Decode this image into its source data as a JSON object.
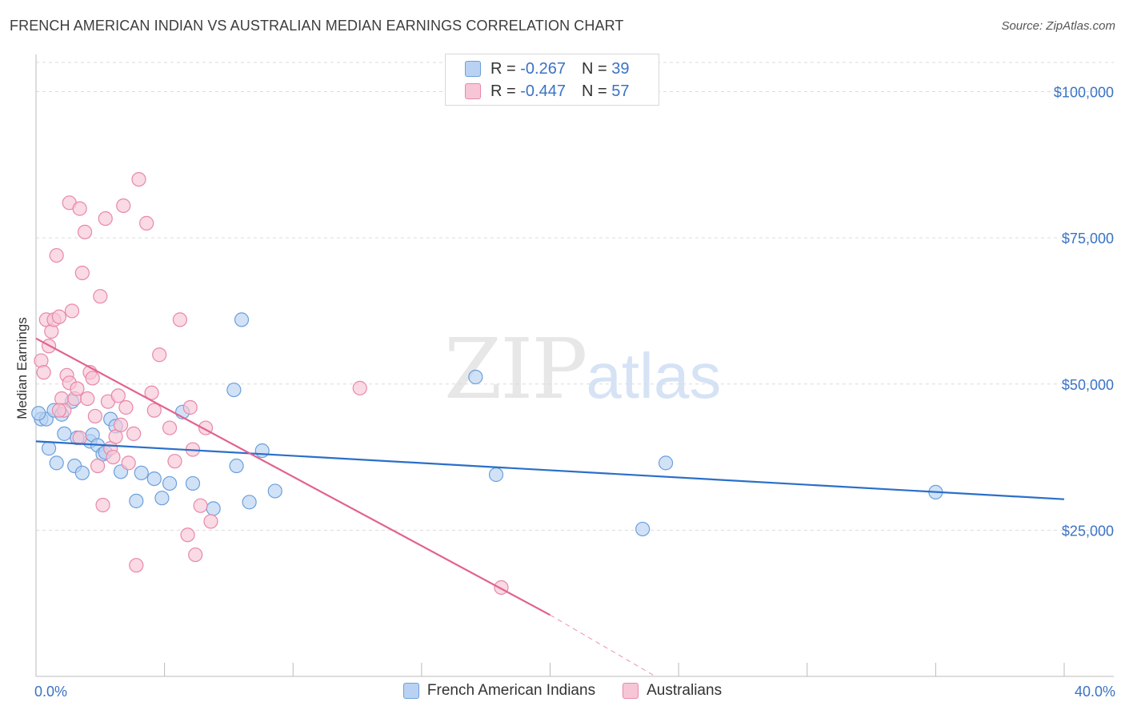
{
  "title": "FRENCH AMERICAN INDIAN VS AUSTRALIAN MEDIAN EARNINGS CORRELATION CHART",
  "source": "Source: ZipAtlas.com",
  "watermark": {
    "zip": "ZIP",
    "atlas": "atlas"
  },
  "stats": [
    {
      "r_label": "R =",
      "r_value": "-0.267",
      "n_label": "N =",
      "n_value": "39"
    },
    {
      "r_label": "R =",
      "r_value": "-0.447",
      "n_label": "N =",
      "n_value": "57"
    }
  ],
  "chart_data": {
    "type": "scatter",
    "title": "FRENCH AMERICAN INDIAN VS AUSTRALIAN MEDIAN EARNINGS CORRELATION CHART",
    "xlabel": "",
    "ylabel": "Median Earnings",
    "xlim": [
      0,
      40
    ],
    "ylim": [
      0,
      105000
    ],
    "x_tick_labels": [
      "0.0%",
      "40.0%"
    ],
    "y_ticks": [
      25000,
      50000,
      75000,
      100000
    ],
    "y_tick_labels": [
      "$25,000",
      "$50,000",
      "$75,000",
      "$100,000"
    ],
    "grid": true,
    "legend_position": "bottom",
    "series": [
      {
        "name": "French American Indians",
        "color": "#6b9fdc",
        "fill": "#b9d2f3",
        "line_color": "#2b6fc9",
        "trend": {
          "x0": 0,
          "y0": 40200,
          "x1": 40,
          "y1": 30300
        },
        "points": [
          [
            0.2,
            44000
          ],
          [
            0.4,
            44000
          ],
          [
            0.5,
            39000
          ],
          [
            0.7,
            45500
          ],
          [
            0.8,
            36500
          ],
          [
            1.0,
            44800
          ],
          [
            1.1,
            41500
          ],
          [
            1.4,
            47000
          ],
          [
            1.5,
            36000
          ],
          [
            1.6,
            40800
          ],
          [
            1.8,
            34800
          ],
          [
            2.1,
            40200
          ],
          [
            2.2,
            41300
          ],
          [
            2.4,
            39500
          ],
          [
            2.6,
            38000
          ],
          [
            2.7,
            38300
          ],
          [
            2.9,
            44000
          ],
          [
            3.1,
            42800
          ],
          [
            3.3,
            35000
          ],
          [
            3.9,
            30000
          ],
          [
            4.1,
            34800
          ],
          [
            4.6,
            33800
          ],
          [
            4.9,
            30500
          ],
          [
            5.2,
            33000
          ],
          [
            5.7,
            45200
          ],
          [
            6.1,
            33000
          ],
          [
            6.9,
            28700
          ],
          [
            7.7,
            49000
          ],
          [
            7.8,
            36000
          ],
          [
            8.0,
            61000
          ],
          [
            8.3,
            29800
          ],
          [
            8.8,
            38600
          ],
          [
            9.3,
            31700
          ],
          [
            17.1,
            51200
          ],
          [
            17.9,
            34500
          ],
          [
            23.6,
            25200
          ],
          [
            24.5,
            36500
          ],
          [
            35.0,
            31500
          ],
          [
            0.1,
            45000
          ]
        ]
      },
      {
        "name": "Australians",
        "color": "#e888a8",
        "fill": "#f7c6d6",
        "line_color": "#e2628f",
        "trend": {
          "x0": 0,
          "y0": 57800,
          "x1": 20,
          "y1": 10500
        },
        "trend_dashed": {
          "x0": 20,
          "y0": 10500,
          "x1": 24.1,
          "y1": 0
        },
        "points": [
          [
            0.2,
            54000
          ],
          [
            0.3,
            52000
          ],
          [
            0.4,
            61000
          ],
          [
            0.5,
            56500
          ],
          [
            0.6,
            59000
          ],
          [
            0.7,
            61000
          ],
          [
            0.8,
            72000
          ],
          [
            0.9,
            61500
          ],
          [
            1.0,
            47500
          ],
          [
            1.1,
            45500
          ],
          [
            1.2,
            51500
          ],
          [
            1.3,
            50200
          ],
          [
            1.3,
            81000
          ],
          [
            1.4,
            62500
          ],
          [
            1.5,
            47500
          ],
          [
            1.6,
            49200
          ],
          [
            1.7,
            80000
          ],
          [
            1.8,
            69000
          ],
          [
            1.9,
            76000
          ],
          [
            2.0,
            47500
          ],
          [
            2.1,
            52000
          ],
          [
            2.2,
            51000
          ],
          [
            2.3,
            44500
          ],
          [
            2.4,
            36000
          ],
          [
            2.5,
            65000
          ],
          [
            2.6,
            29300
          ],
          [
            2.7,
            78300
          ],
          [
            2.8,
            47000
          ],
          [
            2.9,
            39000
          ],
          [
            3.0,
            37500
          ],
          [
            3.1,
            41000
          ],
          [
            3.2,
            48000
          ],
          [
            3.3,
            43000
          ],
          [
            3.4,
            80500
          ],
          [
            3.5,
            46000
          ],
          [
            3.6,
            36500
          ],
          [
            3.8,
            41500
          ],
          [
            3.9,
            19000
          ],
          [
            4.0,
            85000
          ],
          [
            4.3,
            77500
          ],
          [
            4.5,
            48500
          ],
          [
            4.6,
            45500
          ],
          [
            4.8,
            55000
          ],
          [
            5.2,
            42500
          ],
          [
            5.4,
            36800
          ],
          [
            5.6,
            61000
          ],
          [
            5.9,
            24200
          ],
          [
            6.0,
            46000
          ],
          [
            6.1,
            38800
          ],
          [
            6.2,
            20800
          ],
          [
            6.4,
            29200
          ],
          [
            6.6,
            42500
          ],
          [
            6.8,
            26500
          ],
          [
            12.6,
            49300
          ],
          [
            18.1,
            15200
          ],
          [
            0.9,
            45500
          ],
          [
            1.7,
            40800
          ]
        ]
      }
    ]
  }
}
